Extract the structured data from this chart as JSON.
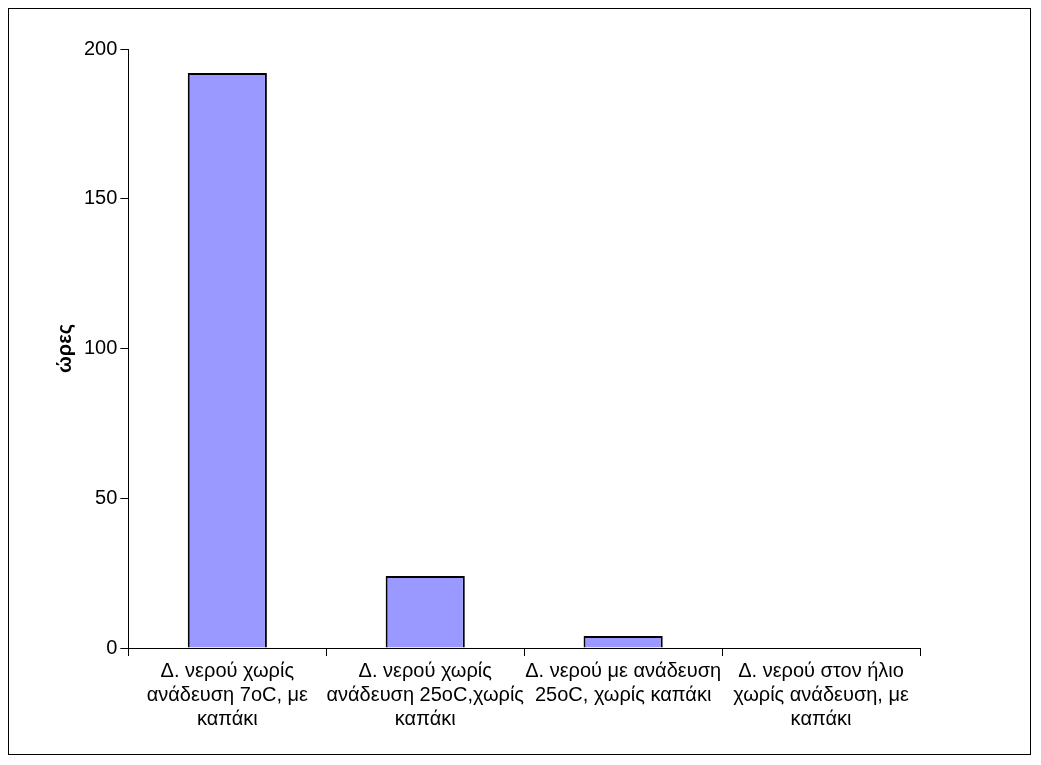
{
  "chart_data": {
    "type": "bar",
    "ylabel": "ώρες",
    "categories": [
      "Δ. νερού χωρίς ανάδευση 7oC, με καπάκι",
      "Δ. νερού χωρίς ανάδευση 25oC,χωρίς καπάκι",
      "Δ. νερού με ανάδευση 25oC, χωρίς καπάκι",
      "Δ. νερού στον ήλιο χωρίς ανάδευση, με καπάκι"
    ],
    "values": [
      192,
      24,
      4,
      0
    ],
    "color": "#9999ff",
    "ylim": [
      0,
      200
    ],
    "yticks": [
      0,
      50,
      100,
      150,
      200
    ],
    "grid": false,
    "legend": false
  }
}
